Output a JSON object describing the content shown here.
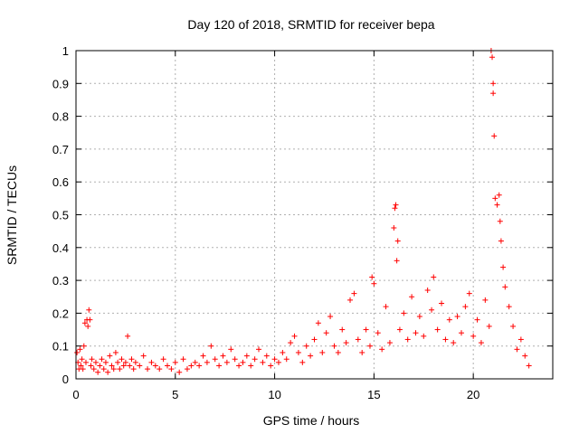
{
  "chart_data": {
    "type": "scatter",
    "title": "Day 120 of 2018, SRMTID for receiver bepa",
    "xlabel": "GPS time / hours",
    "ylabel": "SRMTID / TECUs",
    "xlim": [
      0,
      24
    ],
    "ylim": [
      0,
      1
    ],
    "xticks": [
      0,
      5,
      10,
      15,
      20
    ],
    "yticks": [
      0,
      0.1,
      0.2,
      0.3,
      0.4,
      0.5,
      0.6,
      0.7,
      0.8,
      0.9,
      1
    ],
    "ytick_labels": [
      "0",
      "0.1",
      "0.2",
      "0.3",
      "0.4",
      "0.5",
      "0.6",
      "0.7",
      "0.8",
      "0.9",
      "1"
    ],
    "grid": true,
    "marker": "+",
    "color": "#ff0000",
    "series": [
      {
        "name": "SRMTID",
        "points": [
          [
            0.05,
            0.08
          ],
          [
            0.1,
            0.05
          ],
          [
            0.15,
            0.03
          ],
          [
            0.2,
            0.09
          ],
          [
            0.25,
            0.04
          ],
          [
            0.3,
            0.06
          ],
          [
            0.35,
            0.03
          ],
          [
            0.4,
            0.1
          ],
          [
            0.45,
            0.17
          ],
          [
            0.5,
            0.05
          ],
          [
            0.55,
            0.18
          ],
          [
            0.6,
            0.16
          ],
          [
            0.65,
            0.21
          ],
          [
            0.7,
            0.18
          ],
          [
            0.75,
            0.04
          ],
          [
            0.8,
            0.06
          ],
          [
            0.9,
            0.03
          ],
          [
            1.0,
            0.05
          ],
          [
            1.1,
            0.02
          ],
          [
            1.2,
            0.04
          ],
          [
            1.3,
            0.06
          ],
          [
            1.4,
            0.03
          ],
          [
            1.5,
            0.05
          ],
          [
            1.6,
            0.02
          ],
          [
            1.7,
            0.07
          ],
          [
            1.8,
            0.04
          ],
          [
            1.9,
            0.03
          ],
          [
            2.0,
            0.08
          ],
          [
            2.1,
            0.05
          ],
          [
            2.2,
            0.03
          ],
          [
            2.3,
            0.06
          ],
          [
            2.4,
            0.04
          ],
          [
            2.5,
            0.05
          ],
          [
            2.6,
            0.13
          ],
          [
            2.7,
            0.04
          ],
          [
            2.8,
            0.06
          ],
          [
            2.9,
            0.03
          ],
          [
            3.0,
            0.05
          ],
          [
            3.2,
            0.04
          ],
          [
            3.4,
            0.07
          ],
          [
            3.6,
            0.03
          ],
          [
            3.8,
            0.05
          ],
          [
            4.0,
            0.04
          ],
          [
            4.2,
            0.03
          ],
          [
            4.4,
            0.06
          ],
          [
            4.6,
            0.04
          ],
          [
            4.8,
            0.03
          ],
          [
            5.0,
            0.05
          ],
          [
            5.2,
            0.02
          ],
          [
            5.4,
            0.06
          ],
          [
            5.6,
            0.03
          ],
          [
            5.8,
            0.04
          ],
          [
            6.0,
            0.05
          ],
          [
            6.2,
            0.04
          ],
          [
            6.4,
            0.07
          ],
          [
            6.6,
            0.05
          ],
          [
            6.8,
            0.1
          ],
          [
            7.0,
            0.06
          ],
          [
            7.2,
            0.04
          ],
          [
            7.4,
            0.07
          ],
          [
            7.6,
            0.05
          ],
          [
            7.8,
            0.09
          ],
          [
            8.0,
            0.06
          ],
          [
            8.2,
            0.04
          ],
          [
            8.4,
            0.05
          ],
          [
            8.6,
            0.07
          ],
          [
            8.8,
            0.04
          ],
          [
            9.0,
            0.06
          ],
          [
            9.2,
            0.09
          ],
          [
            9.4,
            0.05
          ],
          [
            9.6,
            0.07
          ],
          [
            9.8,
            0.04
          ],
          [
            10.0,
            0.06
          ],
          [
            10.2,
            0.05
          ],
          [
            10.4,
            0.08
          ],
          [
            10.6,
            0.06
          ],
          [
            10.8,
            0.11
          ],
          [
            11.0,
            0.13
          ],
          [
            11.2,
            0.08
          ],
          [
            11.4,
            0.05
          ],
          [
            11.6,
            0.1
          ],
          [
            11.8,
            0.07
          ],
          [
            12.0,
            0.12
          ],
          [
            12.2,
            0.17
          ],
          [
            12.4,
            0.08
          ],
          [
            12.6,
            0.14
          ],
          [
            12.8,
            0.19
          ],
          [
            13.0,
            0.1
          ],
          [
            13.2,
            0.08
          ],
          [
            13.4,
            0.15
          ],
          [
            13.6,
            0.11
          ],
          [
            13.8,
            0.24
          ],
          [
            14.0,
            0.26
          ],
          [
            14.2,
            0.12
          ],
          [
            14.4,
            0.08
          ],
          [
            14.6,
            0.15
          ],
          [
            14.8,
            0.1
          ],
          [
            14.9,
            0.31
          ],
          [
            15.0,
            0.29
          ],
          [
            15.2,
            0.14
          ],
          [
            15.4,
            0.09
          ],
          [
            15.6,
            0.22
          ],
          [
            15.8,
            0.11
          ],
          [
            16.0,
            0.46
          ],
          [
            16.05,
            0.52
          ],
          [
            16.1,
            0.53
          ],
          [
            16.15,
            0.36
          ],
          [
            16.2,
            0.42
          ],
          [
            16.3,
            0.15
          ],
          [
            16.5,
            0.2
          ],
          [
            16.7,
            0.12
          ],
          [
            16.9,
            0.25
          ],
          [
            17.1,
            0.14
          ],
          [
            17.3,
            0.19
          ],
          [
            17.5,
            0.13
          ],
          [
            17.7,
            0.27
          ],
          [
            17.9,
            0.21
          ],
          [
            18.0,
            0.31
          ],
          [
            18.2,
            0.15
          ],
          [
            18.4,
            0.23
          ],
          [
            18.6,
            0.12
          ],
          [
            18.8,
            0.18
          ],
          [
            19.0,
            0.11
          ],
          [
            19.2,
            0.19
          ],
          [
            19.4,
            0.14
          ],
          [
            19.6,
            0.22
          ],
          [
            19.8,
            0.26
          ],
          [
            20.0,
            0.13
          ],
          [
            20.2,
            0.18
          ],
          [
            20.4,
            0.11
          ],
          [
            20.6,
            0.24
          ],
          [
            20.8,
            0.16
          ],
          [
            20.9,
            1.0
          ],
          [
            20.95,
            0.98
          ],
          [
            21.0,
            0.9
          ],
          [
            21.0,
            0.87
          ],
          [
            21.05,
            0.74
          ],
          [
            21.1,
            0.55
          ],
          [
            21.2,
            0.53
          ],
          [
            21.3,
            0.56
          ],
          [
            21.35,
            0.48
          ],
          [
            21.4,
            0.42
          ],
          [
            21.5,
            0.34
          ],
          [
            21.6,
            0.28
          ],
          [
            21.8,
            0.22
          ],
          [
            22.0,
            0.16
          ],
          [
            22.2,
            0.09
          ],
          [
            22.4,
            0.12
          ],
          [
            22.6,
            0.07
          ],
          [
            22.8,
            0.04
          ]
        ]
      }
    ]
  }
}
